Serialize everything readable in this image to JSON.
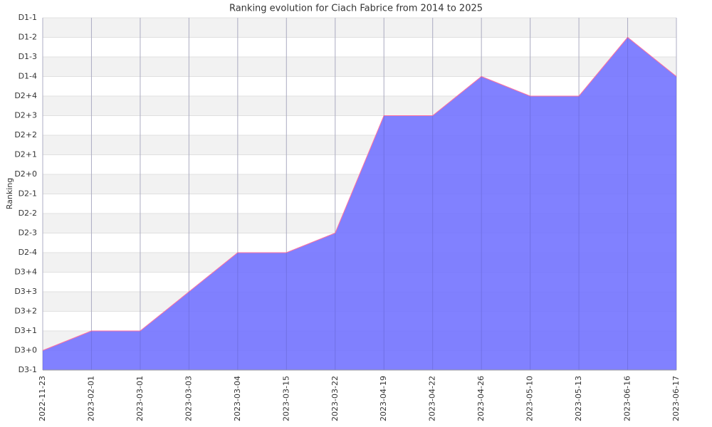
{
  "chart_data": {
    "type": "area",
    "title": "Ranking evolution for Ciach Fabrice from 2014 to 2025",
    "y_label": "Ranking",
    "categories": [
      "2022-11-23",
      "2023-02-01",
      "2023-03-01",
      "2023-03-03",
      "2023-03-04",
      "2023-03-15",
      "2023-03-22",
      "2023-04-19",
      "2023-04-22",
      "2023-04-26",
      "2023-05-10",
      "2023-05-13",
      "2023-06-16",
      "2023-06-17"
    ],
    "values": [
      1,
      2,
      2,
      4,
      6,
      6,
      7,
      13,
      13,
      15,
      14,
      14,
      17,
      15
    ],
    "color": "#7070ff",
    "line_color": "#ff6f9f",
    "ylim": [
      0,
      18
    ],
    "yticks": [
      {
        "value": 0,
        "label": "D3-1"
      },
      {
        "value": 1,
        "label": "D3+0"
      },
      {
        "value": 2,
        "label": "D3+1"
      },
      {
        "value": 3,
        "label": "D3+2"
      },
      {
        "value": 4,
        "label": "D3+3"
      },
      {
        "value": 5,
        "label": "D3+4"
      },
      {
        "value": 6,
        "label": "D2-4"
      },
      {
        "value": 7,
        "label": "D2-3"
      },
      {
        "value": 8,
        "label": "D2-2"
      },
      {
        "value": 9,
        "label": "D2-1"
      },
      {
        "value": 10,
        "label": "D2+0"
      },
      {
        "value": 11,
        "label": "D2+1"
      },
      {
        "value": 12,
        "label": "D2+2"
      },
      {
        "value": 13,
        "label": "D2+3"
      },
      {
        "value": 14,
        "label": "D2+4"
      },
      {
        "value": 15,
        "label": "D1-4"
      },
      {
        "value": 16,
        "label": "D1-3"
      },
      {
        "value": 17,
        "label": "D1-2"
      },
      {
        "value": 18,
        "label": "D1-1"
      }
    ],
    "grid": true
  }
}
